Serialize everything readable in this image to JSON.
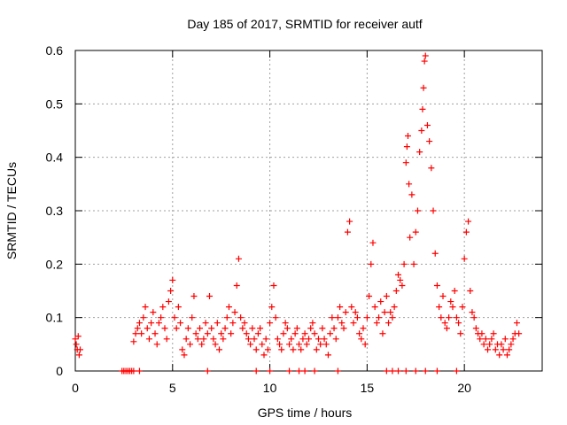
{
  "chart_data": {
    "type": "scatter",
    "title": "Day 185 of 2017, SRMTID for receiver autf",
    "xlabel": "GPS time / hours",
    "ylabel": "SRMTID / TECUs",
    "xlim": [
      0,
      24
    ],
    "ylim": [
      0,
      0.6
    ],
    "xticks": [
      0,
      5,
      10,
      15,
      20
    ],
    "yticks": [
      0,
      0.1,
      0.2,
      0.3,
      0.4,
      0.5,
      0.6
    ],
    "grid": true,
    "marker": "+",
    "series_color": "#ff0000",
    "series": [
      {
        "name": "SRMTID",
        "x": [
          0.0,
          0.05,
          0.1,
          0.15,
          0.2,
          0.25,
          2.4,
          2.5,
          2.6,
          2.7,
          2.8,
          2.9,
          3.0,
          3.1,
          3.2,
          3.3,
          3.4,
          3.5,
          3.6,
          3.7,
          3.8,
          3.9,
          4.0,
          4.1,
          4.2,
          4.3,
          4.4,
          4.5,
          4.6,
          4.7,
          4.8,
          4.9,
          5.0,
          5.1,
          5.2,
          5.3,
          5.4,
          5.5,
          5.6,
          5.7,
          5.8,
          5.9,
          6.0,
          6.1,
          6.2,
          6.3,
          6.4,
          6.5,
          6.6,
          6.7,
          6.8,
          6.9,
          7.0,
          7.1,
          7.2,
          7.3,
          7.4,
          7.5,
          7.6,
          7.7,
          7.8,
          7.9,
          8.0,
          8.1,
          8.2,
          8.3,
          8.4,
          8.5,
          8.6,
          8.7,
          8.8,
          8.9,
          9.0,
          9.1,
          9.2,
          9.3,
          9.4,
          9.5,
          9.6,
          9.7,
          9.8,
          9.9,
          10.0,
          10.1,
          10.2,
          10.3,
          10.4,
          10.5,
          10.6,
          10.7,
          10.8,
          10.9,
          11.0,
          11.1,
          11.2,
          11.3,
          11.4,
          11.5,
          11.6,
          11.7,
          11.8,
          11.9,
          12.0,
          12.1,
          12.2,
          12.3,
          12.4,
          12.5,
          12.6,
          12.7,
          12.8,
          12.9,
          13.0,
          13.1,
          13.2,
          13.3,
          13.4,
          13.5,
          13.6,
          13.7,
          13.8,
          13.9,
          14.0,
          14.1,
          14.2,
          14.3,
          14.4,
          14.5,
          14.6,
          14.7,
          14.8,
          14.9,
          15.0,
          15.1,
          15.2,
          15.3,
          15.4,
          15.5,
          15.6,
          15.7,
          15.8,
          15.9,
          16.0,
          16.1,
          16.2,
          16.3,
          16.4,
          16.5,
          16.6,
          16.7,
          16.8,
          16.9,
          17.0,
          17.05,
          17.1,
          17.15,
          17.2,
          17.3,
          17.4,
          17.5,
          17.6,
          17.7,
          17.8,
          17.85,
          17.9,
          17.95,
          18.0,
          18.1,
          18.2,
          18.3,
          18.4,
          18.5,
          18.6,
          18.7,
          18.8,
          18.9,
          19.0,
          19.1,
          19.2,
          19.3,
          19.4,
          19.5,
          19.6,
          19.7,
          19.8,
          19.9,
          20.0,
          20.1,
          20.2,
          20.3,
          20.4,
          20.5,
          20.6,
          20.7,
          20.8,
          20.9,
          21.0,
          21.1,
          21.2,
          21.3,
          21.4,
          21.5,
          21.6,
          21.7,
          21.8,
          21.9,
          22.0,
          22.1,
          22.2,
          22.3,
          22.4,
          22.5,
          22.6,
          22.7,
          22.8,
          2.5,
          2.8,
          3.0,
          3.3,
          6.8,
          9.3,
          10.0,
          11.0,
          11.5,
          11.8,
          12.3,
          13.5,
          16.0,
          16.3,
          16.6,
          17.0,
          17.5,
          18.0,
          18.6,
          19.6
        ],
        "y": [
          0.06,
          0.05,
          0.04,
          0.065,
          0.03,
          0.04,
          0.0,
          0.0,
          0.0,
          0.0,
          0.0,
          0.0,
          0.055,
          0.07,
          0.08,
          0.09,
          0.07,
          0.1,
          0.12,
          0.08,
          0.06,
          0.09,
          0.11,
          0.07,
          0.05,
          0.09,
          0.1,
          0.12,
          0.08,
          0.06,
          0.13,
          0.15,
          0.17,
          0.1,
          0.08,
          0.12,
          0.09,
          0.04,
          0.03,
          0.06,
          0.08,
          0.05,
          0.1,
          0.14,
          0.07,
          0.06,
          0.08,
          0.05,
          0.06,
          0.09,
          0.07,
          0.14,
          0.08,
          0.06,
          0.05,
          0.09,
          0.04,
          0.07,
          0.06,
          0.08,
          0.1,
          0.12,
          0.07,
          0.09,
          0.11,
          0.16,
          0.21,
          0.1,
          0.08,
          0.09,
          0.07,
          0.06,
          0.05,
          0.08,
          0.06,
          0.04,
          0.07,
          0.08,
          0.05,
          0.03,
          0.06,
          0.04,
          0.09,
          0.12,
          0.16,
          0.1,
          0.06,
          0.05,
          0.04,
          0.07,
          0.09,
          0.08,
          0.05,
          0.06,
          0.04,
          0.07,
          0.08,
          0.05,
          0.04,
          0.06,
          0.07,
          0.05,
          0.06,
          0.08,
          0.09,
          0.07,
          0.04,
          0.06,
          0.05,
          0.08,
          0.06,
          0.05,
          0.03,
          0.07,
          0.1,
          0.08,
          0.06,
          0.1,
          0.12,
          0.09,
          0.08,
          0.11,
          0.26,
          0.28,
          0.12,
          0.09,
          0.11,
          0.1,
          0.07,
          0.06,
          0.08,
          0.05,
          0.1,
          0.14,
          0.2,
          0.24,
          0.12,
          0.09,
          0.1,
          0.13,
          0.07,
          0.11,
          0.14,
          0.09,
          0.11,
          0.1,
          0.12,
          0.15,
          0.18,
          0.17,
          0.16,
          0.2,
          0.39,
          0.42,
          0.44,
          0.35,
          0.25,
          0.33,
          0.2,
          0.26,
          0.3,
          0.41,
          0.45,
          0.49,
          0.53,
          0.58,
          0.59,
          0.46,
          0.43,
          0.38,
          0.3,
          0.22,
          0.16,
          0.12,
          0.1,
          0.14,
          0.09,
          0.08,
          0.1,
          0.13,
          0.12,
          0.15,
          0.1,
          0.09,
          0.07,
          0.12,
          0.21,
          0.26,
          0.28,
          0.15,
          0.11,
          0.1,
          0.08,
          0.07,
          0.06,
          0.07,
          0.05,
          0.06,
          0.04,
          0.05,
          0.06,
          0.07,
          0.04,
          0.05,
          0.03,
          0.05,
          0.04,
          0.06,
          0.03,
          0.04,
          0.05,
          0.06,
          0.07,
          0.09,
          0.07,
          0.0,
          0.0,
          0.0,
          0.0,
          0.0,
          0.0,
          0.0,
          0.0,
          0.0,
          0.0,
          0.0,
          0.0,
          0.0,
          0.0,
          0.0,
          0.0,
          0.0,
          0.0,
          0.0,
          0.0
        ]
      }
    ]
  }
}
